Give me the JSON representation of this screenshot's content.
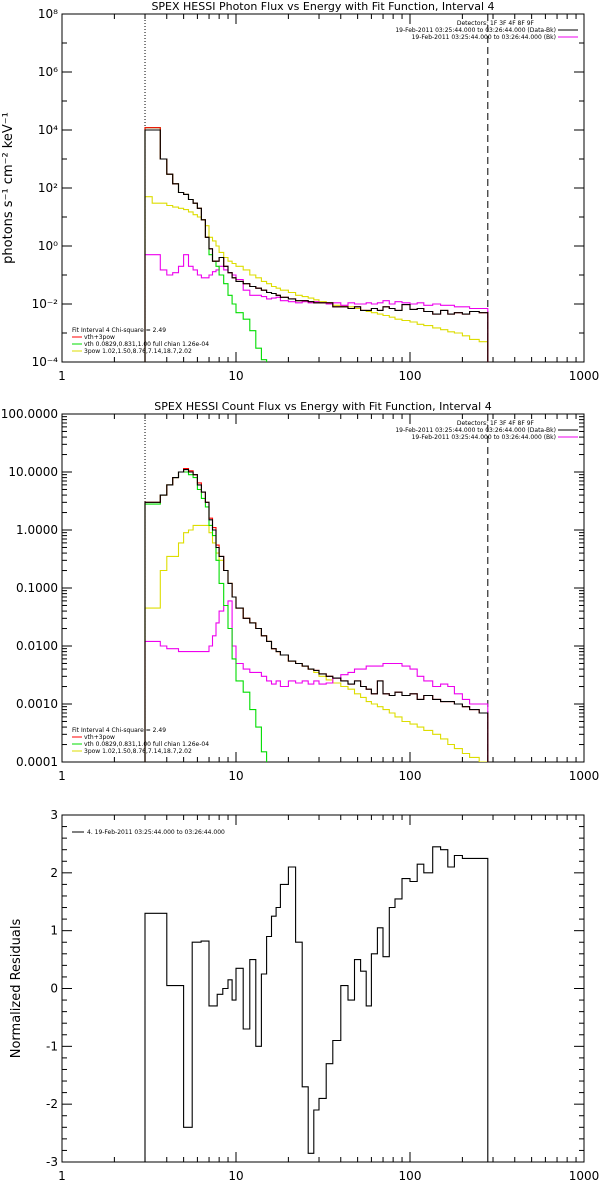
{
  "colors": {
    "data": "#000000",
    "total": "#ff0000",
    "vth": "#00dd00",
    "power": "#dddd00",
    "bkg": "#ee00ee"
  },
  "chart_data": [
    {
      "type": "line",
      "title": "SPEX HESSI Photon Flux vs Energy with Fit Function, Interval 4",
      "ylabel": "photons s^-1 cm^-2 keV^-1",
      "xlabel": "",
      "xscale": "log",
      "yscale": "log",
      "xlim": [
        1,
        1000
      ],
      "ylim": [
        0.0001,
        100000000
      ],
      "xticks": [
        "1",
        "10",
        "100",
        "1000"
      ],
      "yticks": [
        "10^-4",
        "10^-2",
        "10^0",
        "10^2",
        "10^4",
        "10^6",
        "10^8"
      ],
      "vlines": [
        3,
        280
      ],
      "legend_top": [
        "Detectors: 1F 3F 4F 8F 9F",
        "19-Feb-2011 03:25:44.000 to 03:26:44.000 (Data-Bk)",
        "19-Feb-2011 03:25:44.000 to 03:26:44.000 (Bk)"
      ],
      "legend_bottom": [
        "Fit Interval  4    Chi-square = 2.49",
        "vth+3pow",
        "vth 0.0829,0.831,1.00  full chian 1.26e-04",
        "3pow 1.02,1.50,8.76,7.14,18.7,2.02"
      ],
      "edges": [
        3,
        3.3,
        3.67,
        4,
        4.33,
        4.67,
        5,
        5.33,
        5.67,
        6,
        6.33,
        6.67,
        7,
        7.33,
        7.67,
        8,
        8.5,
        9,
        9.5,
        10,
        11,
        12,
        13,
        14,
        15,
        16,
        17,
        18,
        20,
        22,
        24,
        26,
        28,
        30,
        33,
        36,
        40,
        44,
        48,
        52,
        56,
        60,
        65,
        70,
        76,
        82,
        90,
        100,
        110,
        120,
        135,
        150,
        165,
        180,
        200,
        220,
        250,
        280
      ],
      "series": [
        {
          "name": "data",
          "color": "#000000",
          "values": [
            10000,
            10000,
            1000,
            300,
            140,
            70,
            60,
            40,
            30,
            20,
            8,
            2,
            0.8,
            0.3,
            0.3,
            0.4,
            0.2,
            0.12,
            0.08,
            0.06,
            0.05,
            0.04,
            0.035,
            0.03,
            0.025,
            0.023,
            0.02,
            0.017,
            0.015,
            0.013,
            0.013,
            0.012,
            0.011,
            0.011,
            0.011,
            0.008,
            0.008,
            0.007,
            0.008,
            0.006,
            0.006,
            0.007,
            0.006,
            0.008,
            0.007,
            0.006,
            0.0095,
            0.0065,
            0.007,
            0.0055,
            0.0045,
            0.006,
            0.0045,
            0.005,
            0.0045,
            0.0055,
            0.005
          ]
        },
        {
          "name": "total",
          "color": "#ff0000",
          "values": [
            12000,
            12000,
            1000,
            300,
            140,
            70,
            60,
            40,
            30,
            20,
            8,
            2,
            0.8,
            0.3,
            0.3,
            0.4,
            0.2,
            0.12,
            0.08,
            0.06,
            0.05,
            0.04,
            0.035,
            0.03,
            0.025,
            0.023,
            0.02,
            0.017,
            0.015,
            0.013,
            0.013,
            0.012,
            0.011,
            0.011,
            0.011,
            0.008,
            0.008,
            0.007,
            0.008,
            0.006,
            0.006,
            0.007,
            0.006,
            0.008,
            0.007,
            0.006,
            0.0095,
            0.0065,
            0.007,
            0.0055,
            0.0045,
            0.006,
            0.0045,
            0.005,
            0.0045,
            0.0055,
            0.005
          ]
        },
        {
          "name": "vth",
          "color": "#00dd00",
          "values": [
            12000,
            12000,
            1000,
            300,
            140,
            70,
            60,
            40,
            30,
            20,
            8,
            2,
            0.5,
            0.3,
            0.2,
            0.1,
            0.05,
            0.02,
            0.01,
            0.005,
            0.003,
            0.0012,
            0.0003,
            0.00012
          ]
        },
        {
          "name": "power",
          "color": "#dddd00",
          "values": [
            50,
            30,
            30,
            25,
            22,
            20,
            18,
            15,
            12,
            10,
            8,
            5,
            2,
            1.5,
            1.0,
            0.6,
            0.4,
            0.3,
            0.25,
            0.2,
            0.15,
            0.1,
            0.08,
            0.06,
            0.05,
            0.04,
            0.035,
            0.03,
            0.025,
            0.02,
            0.018,
            0.016,
            0.014,
            0.012,
            0.011,
            0.009,
            0.0085,
            0.008,
            0.007,
            0.006,
            0.0055,
            0.005,
            0.0045,
            0.004,
            0.0035,
            0.003,
            0.0027,
            0.0024,
            0.002,
            0.0018,
            0.0015,
            0.0013,
            0.0011,
            0.001,
            0.0008,
            0.0006,
            0.0005
          ]
        },
        {
          "name": "bkg",
          "color": "#ee00ee",
          "values": [
            0.5,
            0.5,
            0.15,
            0.1,
            0.12,
            0.2,
            0.5,
            0.2,
            0.15,
            0.1,
            0.08,
            0.08,
            0.1,
            0.13,
            0.15,
            0.2,
            0.15,
            0.12,
            0.1,
            0.07,
            0.03,
            0.02,
            0.02,
            0.018,
            0.015,
            0.016,
            0.017,
            0.013,
            0.012,
            0.011,
            0.012,
            0.011,
            0.012,
            0.011,
            0.01,
            0.011,
            0.009,
            0.011,
            0.01,
            0.01,
            0.011,
            0.01,
            0.011,
            0.013,
            0.01,
            0.012,
            0.011,
            0.01,
            0.011,
            0.009,
            0.01,
            0.009,
            0.009,
            0.008,
            0.008,
            0.007,
            0.007
          ]
        }
      ]
    },
    {
      "type": "line",
      "title": "SPEX HESSI Count Flux vs Energy with Fit Function, Interval 4",
      "ylabel": "",
      "xlabel": "",
      "xscale": "log",
      "yscale": "log",
      "xlim": [
        1,
        1000
      ],
      "ylim": [
        0.0001,
        100
      ],
      "xticks": [
        "1",
        "10",
        "100",
        "1000"
      ],
      "yticks": [
        "0.0001",
        "0.0010",
        "0.0100",
        "0.1000",
        "1.0000",
        "10.0000",
        "100.0000"
      ],
      "vlines": [
        3,
        280
      ],
      "legend_top": [
        "Detectors: 1F 3F 4F 8F 9F",
        "19-Feb-2011 03:25:44.000 to 03:26:44.000 (Data-Bk)",
        "19-Feb-2011 03:25:44.000 to 03:26:44.000 (Bk)"
      ],
      "legend_bottom": [
        "Fit Interval  4    Chi-square = 2.49",
        "vth+3pow",
        "vth 0.0829,0.831,1.00  full chian 1.26e-04",
        "3pow 1.02,1.50,8.76,7.14,18.7,2.02"
      ],
      "edges": [
        3,
        3.3,
        3.67,
        4,
        4.33,
        4.67,
        5,
        5.33,
        5.67,
        6,
        6.33,
        6.67,
        7,
        7.33,
        7.67,
        8,
        8.5,
        9,
        9.5,
        10,
        11,
        12,
        13,
        14,
        15,
        16,
        17,
        18,
        20,
        22,
        24,
        26,
        28,
        30,
        33,
        36,
        40,
        44,
        48,
        52,
        56,
        60,
        65,
        70,
        76,
        82,
        90,
        100,
        110,
        120,
        135,
        150,
        165,
        180,
        200,
        220,
        250,
        280
      ],
      "series": [
        {
          "name": "data",
          "color": "#000000",
          "values": [
            3,
            3,
            4,
            6,
            8,
            10,
            11,
            10,
            9,
            6,
            4.5,
            3,
            1.5,
            1,
            0.5,
            0.35,
            0.2,
            0.12,
            0.07,
            0.045,
            0.03,
            0.025,
            0.02,
            0.015,
            0.012,
            0.009,
            0.008,
            0.007,
            0.0055,
            0.005,
            0.0045,
            0.004,
            0.0038,
            0.0033,
            0.003,
            0.0028,
            0.0025,
            0.0022,
            0.0025,
            0.002,
            0.0018,
            0.0015,
            0.0025,
            0.0015,
            0.0014,
            0.0016,
            0.0014,
            0.0015,
            0.0012,
            0.0014,
            0.0012,
            0.0011,
            0.0011,
            0.001,
            0.0009,
            0.0008,
            0.0007
          ]
        },
        {
          "name": "total",
          "color": "#ff0000",
          "values": [
            3,
            3,
            4,
            6,
            8,
            10,
            11.5,
            10.5,
            9,
            6.5,
            4.5,
            3,
            1.6,
            1.1,
            0.55,
            0.35,
            0.2,
            0.12,
            0.07,
            0.045,
            0.03,
            0.025,
            0.02,
            0.015,
            0.012,
            0.009,
            0.008,
            0.007,
            0.0055,
            0.005,
            0.0045,
            0.004,
            0.0038,
            0.0033,
            0.003,
            0.0028,
            0.0025,
            0.0022,
            0.0025,
            0.002,
            0.0018,
            0.0015,
            0.0025,
            0.0015,
            0.0014,
            0.0016,
            0.0014,
            0.0015,
            0.0012,
            0.0014,
            0.0012,
            0.0011,
            0.0011,
            0.001,
            0.0009,
            0.0008,
            0.0007
          ]
        },
        {
          "name": "vth",
          "color": "#00dd00",
          "values": [
            2.8,
            2.8,
            4,
            6,
            8,
            10,
            10,
            9,
            8,
            5,
            3.5,
            2.5,
            1.2,
            0.8,
            0.3,
            0.12,
            0.05,
            0.02,
            0.006,
            0.0025,
            0.0016,
            0.0008,
            0.0004,
            0.00015
          ]
        },
        {
          "name": "power",
          "color": "#dddd00",
          "values": [
            0.045,
            0.045,
            0.2,
            0.35,
            0.35,
            0.6,
            0.9,
            1.0,
            1.2,
            1.2,
            1.2,
            1.2,
            0.9,
            0.6,
            0.4,
            0.3,
            0.2,
            0.12,
            0.07,
            0.045,
            0.03,
            0.025,
            0.02,
            0.015,
            0.012,
            0.009,
            0.008,
            0.007,
            0.0055,
            0.005,
            0.0045,
            0.004,
            0.0035,
            0.003,
            0.0026,
            0.0023,
            0.002,
            0.0018,
            0.0015,
            0.0013,
            0.0011,
            0.001,
            0.0009,
            0.0008,
            0.0007,
            0.0006,
            0.0005,
            0.00045,
            0.0004,
            0.00035,
            0.0003,
            0.00025,
            0.0002,
            0.00017,
            0.00014,
            0.00012,
            0.0001
          ]
        },
        {
          "name": "bkg",
          "color": "#ee00ee",
          "values": [
            0.012,
            0.012,
            0.01,
            0.009,
            0.009,
            0.008,
            0.008,
            0.008,
            0.008,
            0.008,
            0.008,
            0.008,
            0.01,
            0.015,
            0.025,
            0.04,
            0.05,
            0.06,
            0.01,
            0.005,
            0.004,
            0.0035,
            0.0035,
            0.003,
            0.0025,
            0.0022,
            0.0025,
            0.002,
            0.0025,
            0.0023,
            0.0025,
            0.0022,
            0.0025,
            0.0022,
            0.0023,
            0.0028,
            0.0032,
            0.0035,
            0.004,
            0.004,
            0.0045,
            0.0045,
            0.0045,
            0.005,
            0.005,
            0.005,
            0.0045,
            0.004,
            0.003,
            0.0025,
            0.002,
            0.0022,
            0.002,
            0.0015,
            0.0012,
            0.001,
            0.001
          ]
        }
      ]
    },
    {
      "type": "line",
      "title": "",
      "ylabel": "Normalized Residuals",
      "xlabel": "",
      "xscale": "log",
      "yscale": "linear",
      "xlim": [
        1,
        1000
      ],
      "ylim": [
        -3,
        3
      ],
      "xticks": [
        "1",
        "10",
        "100",
        "1000"
      ],
      "yticks": [
        "-3",
        "-2",
        "-1",
        "0",
        "1",
        "2",
        "3"
      ],
      "legend_top": [
        "4. 19-Feb-2011 03:25:44.000 to 03:26:44.000"
      ],
      "edges": [
        3,
        4,
        5,
        5.6,
        6.3,
        7,
        7.8,
        8.4,
        9,
        9.5,
        10,
        11,
        12,
        13,
        14,
        15,
        16,
        17,
        18,
        20,
        22,
        24,
        26,
        28,
        30,
        33,
        36,
        40,
        44,
        48,
        52,
        56,
        60,
        65,
        70,
        76,
        82,
        90,
        100,
        110,
        120,
        135,
        150,
        165,
        180,
        200,
        220,
        250,
        280
      ],
      "series": [
        {
          "name": "residuals",
          "color": "#000000",
          "values": [
            1.3,
            0.05,
            -2.4,
            0.8,
            0.82,
            -0.3,
            -0.1,
            0.0,
            0.15,
            -0.2,
            0.35,
            -0.7,
            0.5,
            -1.0,
            0.25,
            0.9,
            1.25,
            1.4,
            1.8,
            2.1,
            0.8,
            -1.7,
            -2.85,
            -2.1,
            -1.9,
            -1.3,
            -0.9,
            0.05,
            -0.2,
            0.5,
            0.3,
            -0.3,
            0.6,
            1.05,
            0.55,
            1.4,
            1.55,
            1.9,
            1.85,
            2.15,
            2.0,
            2.45,
            2.4,
            2.1,
            2.3,
            2.25,
            2.25,
            2.25
          ]
        }
      ]
    }
  ]
}
